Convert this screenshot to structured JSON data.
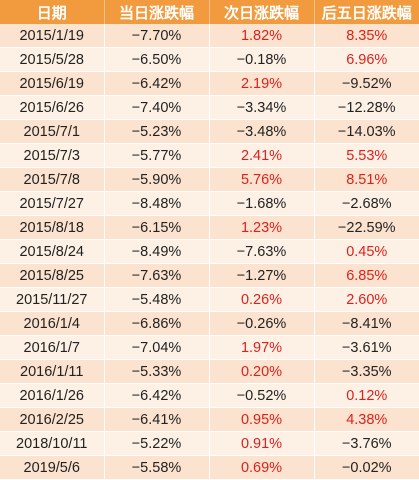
{
  "colors": {
    "header_bg": "#f29a3e",
    "header_text": "#ffffff",
    "row_odd": "#fbe3cf",
    "row_even": "#fdf1e6",
    "positive": "#e0201c",
    "negative": "#222222"
  },
  "table": {
    "headers": [
      "日期",
      "当日涨跌幅",
      "次日涨跌幅",
      "后五日涨跌幅"
    ],
    "rows": [
      [
        "2015/1/19",
        "−7.70%",
        "1.82%",
        "8.35%"
      ],
      [
        "2015/5/28",
        "−6.50%",
        "−0.18%",
        "6.96%"
      ],
      [
        "2015/6/19",
        "−6.42%",
        "2.19%",
        "−9.52%"
      ],
      [
        "2015/6/26",
        "−7.40%",
        "−3.34%",
        "−12.28%"
      ],
      [
        "2015/7/1",
        "−5.23%",
        "−3.48%",
        "−14.03%"
      ],
      [
        "2015/7/3",
        "−5.77%",
        "2.41%",
        "5.53%"
      ],
      [
        "2015/7/8",
        "−5.90%",
        "5.76%",
        "8.51%"
      ],
      [
        "2015/7/27",
        "−8.48%",
        "−1.68%",
        "−2.68%"
      ],
      [
        "2015/8/18",
        "−6.15%",
        "1.23%",
        "−22.59%"
      ],
      [
        "2015/8/24",
        "−8.49%",
        "−7.63%",
        "0.45%"
      ],
      [
        "2015/8/25",
        "−7.63%",
        "−1.27%",
        "6.85%"
      ],
      [
        "2015/11/27",
        "−5.48%",
        "0.26%",
        "2.60%"
      ],
      [
        "2016/1/4",
        "−6.86%",
        "−0.26%",
        "−8.41%"
      ],
      [
        "2016/1/7",
        "−7.04%",
        "1.97%",
        "−3.61%"
      ],
      [
        "2016/1/11",
        "−5.33%",
        "0.20%",
        "−3.35%"
      ],
      [
        "2016/1/26",
        "−6.42%",
        "−0.52%",
        "0.12%"
      ],
      [
        "2016/2/25",
        "−6.41%",
        "0.95%",
        "4.38%"
      ],
      [
        "2018/10/11",
        "−5.22%",
        "0.91%",
        "−3.76%"
      ],
      [
        "2019/5/6",
        "−5.58%",
        "0.69%",
        "−0.02%"
      ]
    ]
  }
}
